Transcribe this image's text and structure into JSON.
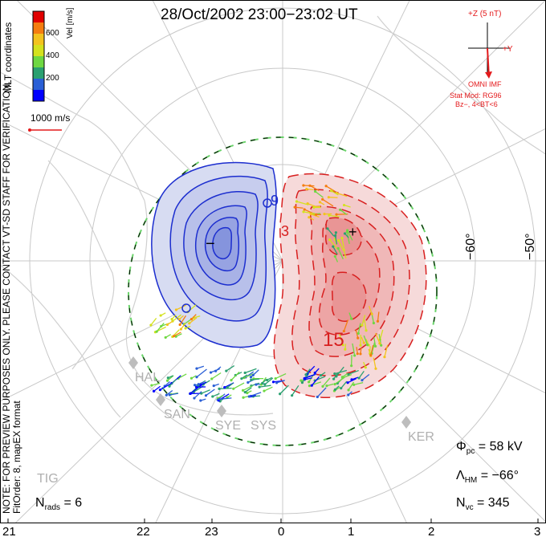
{
  "title": "28/Oct/2002 23:00−23:02 UT",
  "colorbar": {
    "label": "Vel [m/s]",
    "ticks": [
      "600",
      "400",
      "200"
    ],
    "colors": [
      "#e10000",
      "#f57d10",
      "#f3c31e",
      "#d4e21e",
      "#6ed842",
      "#2aa070",
      "#2a5fd6",
      "#0000ff"
    ]
  },
  "coord_label": "MLT coordinates",
  "scale_label": "1000 m/s",
  "imf": {
    "z_label": "+Z (5 nT)",
    "y_label": "+Y",
    "source_label": "OMNI IMF",
    "stat_mod": "Stat Mod: RG96",
    "condition": "Bz−, 4<BT<6"
  },
  "note": "NOTE: FOR PREVIEW PURPOSES ONLY. PLEASE CONTACT VT-SD STAFF FOR VERIFICATION.",
  "fit": "FitOrder: 8, mapEX format",
  "lat_labels": [
    "−60°",
    "−50°"
  ],
  "contour_labels": [
    "9",
    "3",
    "15"
  ],
  "extremum_markers": [
    "−",
    "+"
  ],
  "stations": [
    "HAL",
    "SAN",
    "SYE",
    "SYS",
    "KER",
    "TIG"
  ],
  "stats": {
    "phi_pc_symbol": "Φ",
    "phi_pc_sub": "pc",
    "phi_pc_value": "= 58 kV",
    "lambda_hm_symbol": "Λ",
    "lambda_hm_sub": "HM",
    "lambda_hm_value": "= −66°",
    "n_vc_symbol": "N",
    "n_vc_sub": "vc",
    "n_vc_value": "= 345",
    "n_rads_symbol": "N",
    "n_rads_sub": "rads",
    "n_rads_value": "= 6"
  },
  "mlt_axis": [
    "21",
    "22",
    "23",
    "0",
    "1",
    "2",
    "3"
  ]
}
